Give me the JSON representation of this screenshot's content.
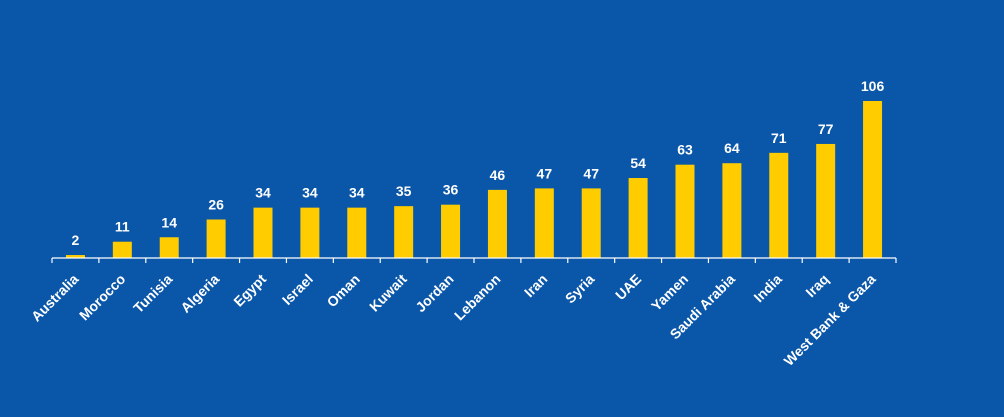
{
  "colors": {
    "background": "#0a56a8",
    "bar": "#ffcc00",
    "text": "#ffffff"
  },
  "chart_data": {
    "type": "bar",
    "categories": [
      "Australia",
      "Morocco",
      "Tunisia",
      "Algeria",
      "Egypt",
      "Israel",
      "Oman",
      "Kuwait",
      "Jordan",
      "Lebanon",
      "Iran",
      "Syria",
      "UAE",
      "Yamen",
      "Saudi Arabia",
      "India",
      "Iraq",
      "West Bank & Gaza"
    ],
    "values": [
      2,
      11,
      14,
      26,
      34,
      34,
      34,
      35,
      36,
      46,
      47,
      47,
      54,
      63,
      64,
      71,
      77,
      106
    ],
    "value_labels": [
      "2",
      "11",
      "14",
      "26",
      "34",
      "34",
      "34",
      "35",
      "36",
      "46",
      "47",
      "47",
      "54",
      "63",
      "64",
      "71",
      "77",
      "106"
    ],
    "title": "",
    "xlabel": "",
    "ylabel": "",
    "ylim": [
      0,
      106
    ],
    "grid": false,
    "legend": "none"
  }
}
